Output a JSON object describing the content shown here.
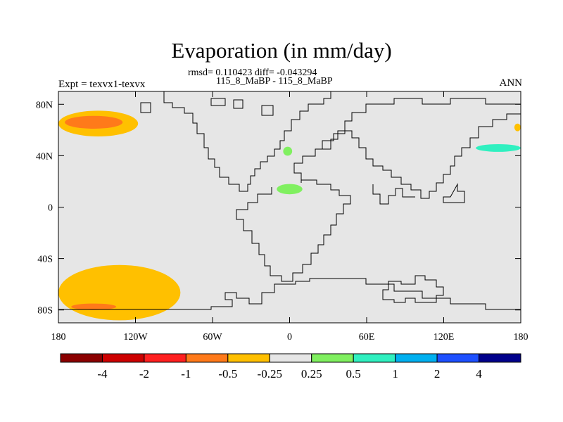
{
  "title": "Evaporation (in mm/day)",
  "stats": "rmsd= 0.110423 diff= -0.043294",
  "expt_name": "115_8_MaBP - 115_8_MaBP",
  "left_label": "Expt = texvx1-texvx",
  "right_label": "ANN",
  "chart_data": {
    "type": "heatmap",
    "title": "Evaporation (in mm/day)",
    "subtitle": "rmsd= 0.110423 diff= -0.043294",
    "xlim": [
      -180,
      180
    ],
    "ylim": [
      -90,
      90
    ],
    "x_ticks": [
      {
        "value": -180,
        "label": "180"
      },
      {
        "value": -120,
        "label": "120W"
      },
      {
        "value": -60,
        "label": "60W"
      },
      {
        "value": 0,
        "label": "0"
      },
      {
        "value": 60,
        "label": "60E"
      },
      {
        "value": 120,
        "label": "120E"
      },
      {
        "value": 180,
        "label": "180"
      }
    ],
    "y_ticks": [
      {
        "value": 80,
        "label": "80N"
      },
      {
        "value": 40,
        "label": "40N"
      },
      {
        "value": 0,
        "label": "0"
      },
      {
        "value": -40,
        "label": "40S"
      },
      {
        "value": -80,
        "label": "80S"
      }
    ],
    "background_color": "#e6e6e6",
    "colorbar": {
      "levels": [
        "-4",
        "-2",
        "-1",
        "-0.5",
        "-0.25",
        "0.25",
        "0.5",
        "1",
        "2",
        "4"
      ],
      "colors": [
        "#8b0000",
        "#cd0000",
        "#ff2020",
        "#ff7a1a",
        "#ffc000",
        "#e6e6e6",
        "#80f060",
        "#30f0c0",
        "#00b0f0",
        "#1e50ff",
        "#00008b"
      ]
    },
    "anomaly_regions": [
      {
        "category": "-0.5 to -0.25",
        "color": "#ffc000",
        "lon": [
          -180,
          -118
        ],
        "lat": [
          55,
          75
        ],
        "note": "North Pacific band"
      },
      {
        "category": "-1 to -0.5",
        "color": "#ff7a1a",
        "lon": [
          -175,
          -130
        ],
        "lat": [
          61,
          71
        ],
        "note": "North Pacific core"
      },
      {
        "category": "-0.5 to -0.25",
        "color": "#ffc000",
        "lon": [
          -180,
          -85
        ],
        "lat": [
          -88,
          -45
        ],
        "note": "Southern Ocean band"
      },
      {
        "category": "-1 to -0.5",
        "color": "#ff7a1a",
        "lon": [
          -170,
          -135
        ],
        "lat": [
          -80,
          -75
        ],
        "note": "Southern Ocean core"
      },
      {
        "category": "0.5 to 1",
        "color": "#30f0c0",
        "lon": [
          145,
          180
        ],
        "lat": [
          43,
          49
        ],
        "note": "Northwest Pacific"
      },
      {
        "category": "0.25 to 0.5",
        "color": "#80f060",
        "lon": [
          -5,
          2
        ],
        "lat": [
          40,
          47
        ],
        "note": "Western Mediterranean"
      },
      {
        "category": "0.25 to 0.5",
        "color": "#80f060",
        "lon": [
          -10,
          10
        ],
        "lat": [
          10,
          18
        ],
        "note": "West Africa"
      },
      {
        "category": "-0.5 to -0.25",
        "color": "#ffc000",
        "lon": [
          175,
          180
        ],
        "lat": [
          59,
          65
        ],
        "note": "Bering Sea"
      }
    ]
  }
}
